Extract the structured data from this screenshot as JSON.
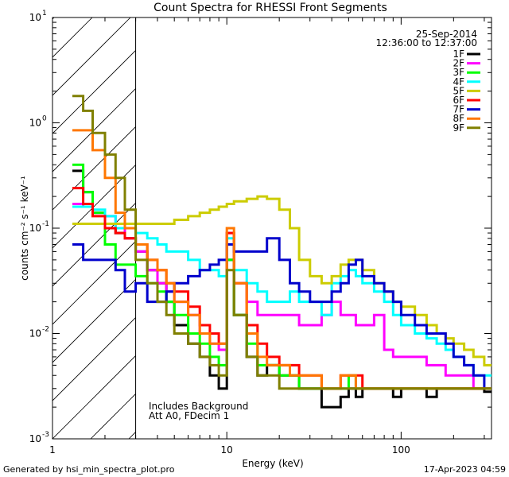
{
  "chart_data": {
    "type": "line",
    "title": "Count Spectra for RHESSI Front Segments",
    "xlabel": "Energy (keV)",
    "ylabel": "counts cm⁻² s⁻¹ keV⁻¹",
    "xscale": "log",
    "yscale": "log",
    "xlim": [
      1,
      330
    ],
    "ylim": [
      0.001,
      10
    ],
    "x_tick_labels": [
      {
        "value": 1,
        "label": "1"
      },
      {
        "value": 10,
        "label": "10"
      },
      {
        "value": 100,
        "label": "100"
      }
    ],
    "y_tick_labels": [
      {
        "exp": 1,
        "base": "10",
        "power": "1"
      },
      {
        "exp": 0,
        "base": "10",
        "power": "0"
      },
      {
        "exp": -1,
        "base": "10",
        "power": "-1"
      },
      {
        "exp": -2,
        "base": "10",
        "power": "-2"
      },
      {
        "exp": -3,
        "base": "10",
        "power": "-3"
      }
    ],
    "date": "25-Sep-2014",
    "time_range": "12:36:00 to 12:37:00",
    "annotations": [
      "Includes Background",
      "Att A0, FDecim 1"
    ],
    "excluded_region": {
      "x_max": 3.0,
      "label": "hatched low-energy region"
    },
    "series": [
      {
        "name": "1F",
        "color": "#000000",
        "x": [
          1.3,
          1.5,
          1.7,
          2.0,
          2.3,
          2.6,
          3.0,
          3.5,
          4.0,
          4.5,
          5.0,
          6.0,
          7.0,
          8.0,
          9.0,
          10.0,
          11.0,
          13,
          15,
          17,
          20,
          23,
          26,
          30,
          35,
          40,
          45,
          50,
          55,
          60,
          70,
          80,
          90,
          100,
          120,
          140,
          160,
          180,
          200,
          230,
          260,
          300
        ],
        "values": [
          0.35,
          0.22,
          0.14,
          0.1,
          0.09,
          0.08,
          0.06,
          0.04,
          0.03,
          0.02,
          0.012,
          0.008,
          0.006,
          0.004,
          0.003,
          0.05,
          0.015,
          0.006,
          0.004,
          0.005,
          0.004,
          0.004,
          0.003,
          0.003,
          0.002,
          0.002,
          0.0025,
          0.003,
          0.0025,
          0.003,
          0.003,
          0.003,
          0.0025,
          0.003,
          0.003,
          0.0025,
          0.003,
          0.003,
          0.003,
          0.003,
          0.003,
          0.0028
        ]
      },
      {
        "name": "2F",
        "color": "#ff00ff",
        "x": [
          1.3,
          1.5,
          1.7,
          2.0,
          2.3,
          2.6,
          3.0,
          3.5,
          4.0,
          4.5,
          5.0,
          6.0,
          7.0,
          8.0,
          9.0,
          10.0,
          11.0,
          13,
          15,
          17,
          20,
          23,
          26,
          30,
          35,
          40,
          45,
          50,
          55,
          60,
          70,
          80,
          90,
          100,
          120,
          140,
          160,
          180,
          200,
          230,
          260,
          300
        ],
        "values": [
          0.17,
          0.16,
          0.14,
          0.13,
          0.1,
          0.08,
          0.06,
          0.04,
          0.03,
          0.025,
          0.02,
          0.015,
          0.01,
          0.008,
          0.007,
          0.09,
          0.03,
          0.02,
          0.015,
          0.015,
          0.015,
          0.015,
          0.012,
          0.012,
          0.015,
          0.02,
          0.015,
          0.015,
          0.012,
          0.012,
          0.015,
          0.007,
          0.006,
          0.006,
          0.006,
          0.005,
          0.005,
          0.004,
          0.004,
          0.004,
          0.003,
          0.003
        ]
      },
      {
        "name": "3F",
        "color": "#00ff00",
        "x": [
          1.3,
          1.5,
          1.7,
          2.0,
          2.3,
          2.6,
          3.0,
          3.5,
          4.0,
          4.5,
          5.0,
          6.0,
          7.0,
          8.0,
          9.0,
          10.0,
          11.0,
          13,
          15,
          17,
          20,
          23,
          26,
          30,
          35,
          40,
          45,
          50,
          55,
          60,
          70,
          80,
          90,
          100,
          120,
          140,
          160,
          180,
          200,
          230,
          260,
          300
        ],
        "values": [
          0.4,
          0.22,
          0.14,
          0.07,
          0.045,
          0.045,
          0.035,
          0.03,
          0.025,
          0.02,
          0.015,
          0.01,
          0.008,
          0.006,
          0.005,
          0.05,
          0.015,
          0.008,
          0.005,
          0.005,
          0.004,
          0.004,
          0.003,
          0.003,
          0.003,
          0.003,
          0.003,
          0.004,
          0.003,
          0.003,
          0.003,
          0.003,
          0.003,
          0.003,
          0.003,
          0.003,
          0.003,
          0.003,
          0.003,
          0.003,
          0.003,
          0.003
        ]
      },
      {
        "name": "4F",
        "color": "#00ffff",
        "x": [
          1.3,
          1.5,
          1.7,
          2.0,
          2.3,
          2.6,
          3.0,
          3.5,
          4.0,
          4.5,
          5.0,
          6.0,
          7.0,
          8.0,
          9.0,
          10.0,
          11.0,
          13,
          15,
          17,
          20,
          23,
          26,
          30,
          35,
          40,
          45,
          50,
          55,
          60,
          70,
          80,
          90,
          100,
          120,
          140,
          160,
          180,
          200,
          230,
          260,
          300
        ],
        "values": [
          0.16,
          0.16,
          0.15,
          0.13,
          0.1,
          0.1,
          0.09,
          0.08,
          0.07,
          0.06,
          0.06,
          0.05,
          0.04,
          0.04,
          0.035,
          0.08,
          0.04,
          0.03,
          0.025,
          0.02,
          0.02,
          0.025,
          0.02,
          0.02,
          0.015,
          0.03,
          0.035,
          0.04,
          0.035,
          0.03,
          0.025,
          0.02,
          0.015,
          0.012,
          0.01,
          0.009,
          0.008,
          0.007,
          0.006,
          0.005,
          0.004,
          0.004
        ]
      },
      {
        "name": "5F",
        "color": "#cccc00",
        "x": [
          1.3,
          1.5,
          1.7,
          2.0,
          2.3,
          2.6,
          3.0,
          3.5,
          4.0,
          4.5,
          5.0,
          6.0,
          7.0,
          8.0,
          9.0,
          10.0,
          11.0,
          13,
          15,
          17,
          20,
          23,
          26,
          30,
          35,
          40,
          45,
          50,
          55,
          60,
          70,
          80,
          90,
          100,
          120,
          140,
          160,
          180,
          200,
          230,
          260,
          300
        ],
        "values": [
          0.11,
          0.11,
          0.11,
          0.11,
          0.11,
          0.11,
          0.11,
          0.11,
          0.11,
          0.11,
          0.12,
          0.13,
          0.14,
          0.15,
          0.16,
          0.17,
          0.18,
          0.19,
          0.2,
          0.19,
          0.15,
          0.1,
          0.05,
          0.035,
          0.03,
          0.035,
          0.045,
          0.05,
          0.05,
          0.04,
          0.03,
          0.025,
          0.02,
          0.018,
          0.015,
          0.012,
          0.01,
          0.009,
          0.008,
          0.007,
          0.006,
          0.005
        ]
      },
      {
        "name": "6F",
        "color": "#ff0000",
        "x": [
          1.3,
          1.5,
          1.7,
          2.0,
          2.3,
          2.6,
          3.0,
          3.5,
          4.0,
          4.5,
          5.0,
          6.0,
          7.0,
          8.0,
          9.0,
          10.0,
          11.0,
          13,
          15,
          17,
          20,
          23,
          26,
          30,
          35,
          40,
          45,
          50,
          55,
          60,
          70,
          80,
          90,
          100,
          120,
          140,
          160,
          180,
          200,
          230,
          260,
          300
        ],
        "values": [
          0.24,
          0.17,
          0.13,
          0.1,
          0.09,
          0.08,
          0.07,
          0.05,
          0.04,
          0.03,
          0.025,
          0.018,
          0.012,
          0.01,
          0.008,
          0.09,
          0.03,
          0.012,
          0.008,
          0.006,
          0.005,
          0.005,
          0.004,
          0.004,
          0.003,
          0.003,
          0.004,
          0.004,
          0.004,
          0.003,
          0.003,
          0.003,
          0.003,
          0.003,
          0.003,
          0.003,
          0.003,
          0.003,
          0.003,
          0.003,
          0.003,
          0.003
        ]
      },
      {
        "name": "7F",
        "color": "#0000cc",
        "x": [
          1.3,
          1.5,
          1.7,
          2.0,
          2.3,
          2.6,
          3.0,
          3.5,
          4.0,
          4.5,
          5.0,
          6.0,
          7.0,
          8.0,
          9.0,
          10.0,
          11.0,
          13,
          15,
          17,
          20,
          23,
          26,
          30,
          35,
          40,
          45,
          50,
          55,
          60,
          70,
          80,
          90,
          100,
          120,
          140,
          160,
          180,
          200,
          230,
          260,
          300
        ],
        "values": [
          0.07,
          0.05,
          0.05,
          0.05,
          0.04,
          0.025,
          0.03,
          0.02,
          0.02,
          0.025,
          0.03,
          0.035,
          0.04,
          0.045,
          0.05,
          0.07,
          0.06,
          0.06,
          0.06,
          0.08,
          0.05,
          0.03,
          0.025,
          0.02,
          0.02,
          0.025,
          0.03,
          0.045,
          0.05,
          0.035,
          0.03,
          0.025,
          0.02,
          0.015,
          0.012,
          0.01,
          0.01,
          0.008,
          0.006,
          0.005,
          0.004,
          0.003
        ]
      },
      {
        "name": "8F",
        "color": "#ff7700",
        "x": [
          1.3,
          1.5,
          1.7,
          2.0,
          2.3,
          2.6,
          3.0,
          3.5,
          4.0,
          4.5,
          5.0,
          6.0,
          7.0,
          8.0,
          9.0,
          10.0,
          11.0,
          13,
          15,
          17,
          20,
          23,
          26,
          30,
          35,
          40,
          45,
          50,
          55,
          60,
          70,
          80,
          90,
          100,
          120,
          140,
          160,
          180,
          200,
          230,
          260,
          300
        ],
        "values": [
          0.85,
          0.85,
          0.55,
          0.3,
          0.14,
          0.1,
          0.07,
          0.05,
          0.04,
          0.03,
          0.02,
          0.015,
          0.01,
          0.008,
          0.008,
          0.1,
          0.03,
          0.01,
          0.006,
          0.005,
          0.005,
          0.004,
          0.004,
          0.004,
          0.003,
          0.003,
          0.004,
          0.004,
          0.003,
          0.003,
          0.003,
          0.003,
          0.003,
          0.003,
          0.003,
          0.003,
          0.003,
          0.003,
          0.003,
          0.003,
          0.003,
          0.003
        ]
      },
      {
        "name": "9F",
        "color": "#808000",
        "x": [
          1.3,
          1.5,
          1.7,
          2.0,
          2.3,
          2.6,
          3.0,
          3.5,
          4.0,
          4.5,
          5.0,
          6.0,
          7.0,
          8.0,
          9.0,
          10.0,
          11.0,
          13,
          15,
          17,
          20,
          23,
          26,
          30,
          35,
          40,
          45,
          50,
          55,
          60,
          70,
          80,
          90,
          100,
          120,
          140,
          160,
          180,
          200,
          230,
          260,
          300
        ],
        "values": [
          1.8,
          1.3,
          0.8,
          0.5,
          0.3,
          0.15,
          0.05,
          0.03,
          0.02,
          0.015,
          0.01,
          0.008,
          0.006,
          0.005,
          0.004,
          0.04,
          0.015,
          0.006,
          0.004,
          0.004,
          0.003,
          0.003,
          0.003,
          0.003,
          0.003,
          0.003,
          0.003,
          0.003,
          0.003,
          0.003,
          0.003,
          0.003,
          0.003,
          0.003,
          0.003,
          0.003,
          0.003,
          0.003,
          0.003,
          0.003,
          0.003,
          0.003
        ]
      }
    ]
  },
  "footer": {
    "generated_by": "Generated by hsi_min_spectra_plot.pro",
    "generated_on": "17-Apr-2023 04:59"
  }
}
